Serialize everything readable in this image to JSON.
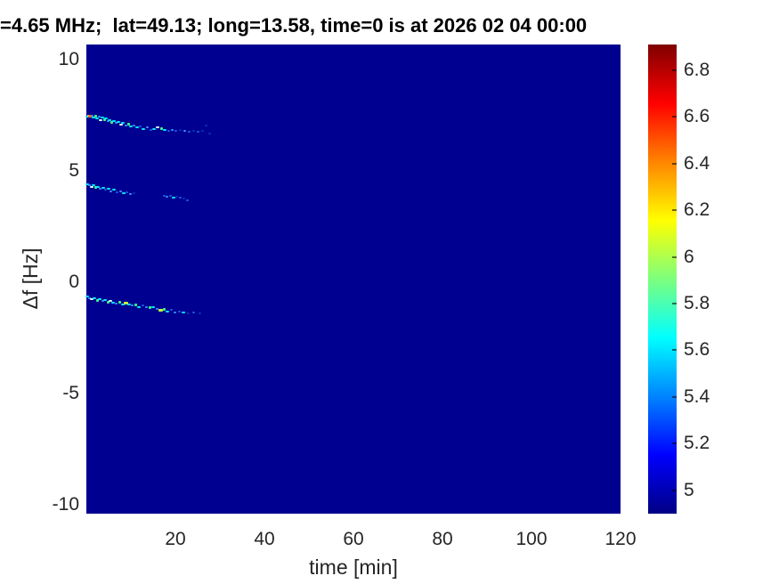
{
  "title": "=4.65 MHz;  lat=49.13; long=13.58, time=0 is at 2026 02 04 00:00",
  "chart_data": {
    "type": "heatmap",
    "title": "=4.65 MHz;  lat=49.13; long=13.58, time=0 is at 2026 02 04 00:00",
    "xlabel": "time [min]",
    "ylabel": "Δf [Hz]",
    "xlim": [
      0,
      120
    ],
    "ylim": [
      -10.4,
      10.68
    ],
    "xticks": [
      20,
      40,
      60,
      80,
      100,
      120
    ],
    "yticks": [
      10,
      5,
      0,
      -5,
      -10
    ],
    "grid": false,
    "background_color": "#000090",
    "background_value": 5.0,
    "colorbar": {
      "range": [
        4.9,
        6.91
      ],
      "ticks": [
        [
          6.8,
          "6.8"
        ],
        [
          6.6,
          "6.6"
        ],
        [
          6.4,
          "6.4"
        ],
        [
          6.2,
          "6.2"
        ],
        [
          6,
          "6"
        ],
        [
          5.8,
          "5.8"
        ],
        [
          5.6,
          "5.6"
        ],
        [
          5.4,
          "5.4"
        ],
        [
          5.2,
          "5.2"
        ],
        [
          5,
          "5"
        ]
      ],
      "colormap": "jet",
      "gradient_top_to_bottom": [
        {
          "pos": 0,
          "color": "#7f0000"
        },
        {
          "pos": 12.5,
          "color": "#ff0000"
        },
        {
          "pos": 25,
          "color": "#ff8400"
        },
        {
          "pos": 37.5,
          "color": "#ffff00"
        },
        {
          "pos": 50,
          "color": "#7dff7d"
        },
        {
          "pos": 62.5,
          "color": "#00ffff"
        },
        {
          "pos": 75,
          "color": "#0084ff"
        },
        {
          "pos": 87.5,
          "color": "#0000ff"
        },
        {
          "pos": 100,
          "color": "#000084"
        }
      ]
    },
    "palette": {
      "or": {
        "color": "#ff6a00",
        "w": 5,
        "h": 3
      },
      "wh": {
        "color": "#d9ffff",
        "w": 4,
        "h": 2
      },
      "cy": {
        "color": "#00e8ff",
        "w": 4,
        "h": 2
      },
      "lb": {
        "color": "#3d8bff",
        "w": 3,
        "h": 2
      },
      "gr": {
        "color": "#3cff88",
        "w": 3,
        "h": 3
      },
      "yg": {
        "color": "#c6ff3a",
        "w": 5,
        "h": 3
      },
      "bl": {
        "color": "#1f55e6",
        "w": 3,
        "h": 2
      },
      "dm": {
        "color": "#0a2fb4",
        "w": 3,
        "h": 2
      }
    },
    "series": [
      {
        "name": "trace-upper-7Hz",
        "points": [
          [
            0.2,
            7.45,
            "cy"
          ],
          [
            0.5,
            7.5,
            "wh"
          ],
          [
            0.9,
            7.45,
            "or"
          ],
          [
            1.2,
            7.5,
            "lb"
          ],
          [
            1.6,
            7.4,
            "cy"
          ],
          [
            2.0,
            7.45,
            "gr"
          ],
          [
            2.4,
            7.35,
            "cy"
          ],
          [
            2.8,
            7.45,
            "lb"
          ],
          [
            3.2,
            7.3,
            "wh"
          ],
          [
            3.6,
            7.4,
            "cy"
          ],
          [
            4.0,
            7.3,
            "gr"
          ],
          [
            4.4,
            7.35,
            "cy"
          ],
          [
            4.8,
            7.25,
            "lb"
          ],
          [
            5.2,
            7.3,
            "cy"
          ],
          [
            5.7,
            7.2,
            "gr"
          ],
          [
            6.2,
            7.25,
            "cy"
          ],
          [
            6.7,
            7.15,
            "lb"
          ],
          [
            7.2,
            7.2,
            "cy"
          ],
          [
            7.7,
            7.1,
            "wh"
          ],
          [
            8.2,
            7.15,
            "cy"
          ],
          [
            8.8,
            7.05,
            "lb"
          ],
          [
            9.4,
            7.1,
            "gr"
          ],
          [
            10.0,
            7.0,
            "cy"
          ],
          [
            10.7,
            7.05,
            "lb"
          ],
          [
            11.4,
            6.95,
            "cy"
          ],
          [
            12.1,
            7.0,
            "bl"
          ],
          [
            12.8,
            6.9,
            "cy"
          ],
          [
            13.6,
            6.95,
            "lb"
          ],
          [
            14.4,
            6.85,
            "bl"
          ],
          [
            15.2,
            6.9,
            "cy"
          ],
          [
            16.0,
            6.95,
            "wh"
          ],
          [
            16.8,
            6.9,
            "gr"
          ],
          [
            17.6,
            6.85,
            "cy"
          ],
          [
            18.4,
            6.8,
            "bl"
          ],
          [
            19.2,
            6.85,
            "lb"
          ],
          [
            20.0,
            6.8,
            "bl"
          ],
          [
            21.0,
            6.85,
            "dm"
          ],
          [
            22.0,
            6.8,
            "lb"
          ],
          [
            23.0,
            6.75,
            "bl"
          ],
          [
            24.0,
            6.8,
            "dm"
          ],
          [
            25.0,
            6.75,
            "bl"
          ],
          [
            26.0,
            6.8,
            "dm"
          ],
          [
            26.8,
            7.05,
            "dm"
          ],
          [
            27.6,
            6.7,
            "dm"
          ]
        ]
      },
      {
        "name": "trace-middle-4Hz",
        "points": [
          [
            0.2,
            4.4,
            "cy"
          ],
          [
            0.6,
            4.35,
            "lb"
          ],
          [
            1.1,
            4.3,
            "wh"
          ],
          [
            1.6,
            4.35,
            "cy"
          ],
          [
            2.1,
            4.25,
            "gr"
          ],
          [
            2.6,
            4.3,
            "cy"
          ],
          [
            3.1,
            4.2,
            "lb"
          ],
          [
            3.7,
            4.25,
            "cy"
          ],
          [
            4.3,
            4.15,
            "bl"
          ],
          [
            4.9,
            4.2,
            "cy"
          ],
          [
            5.5,
            4.1,
            "lb"
          ],
          [
            6.2,
            4.15,
            "cy"
          ],
          [
            6.9,
            4.05,
            "bl"
          ],
          [
            7.6,
            4.1,
            "lb"
          ],
          [
            8.3,
            4.0,
            "cy"
          ],
          [
            9.0,
            4.05,
            "bl"
          ],
          [
            9.8,
            3.95,
            "lb"
          ],
          [
            10.6,
            4.0,
            "dm"
          ],
          [
            17.4,
            3.9,
            "bl"
          ],
          [
            18.1,
            3.85,
            "lb"
          ],
          [
            18.8,
            3.9,
            "bl"
          ],
          [
            19.5,
            3.8,
            "cy"
          ],
          [
            20.2,
            3.85,
            "dm"
          ],
          [
            21.0,
            3.8,
            "bl"
          ],
          [
            21.8,
            3.75,
            "dm"
          ],
          [
            22.6,
            3.7,
            "bl"
          ]
        ]
      },
      {
        "name": "trace-lower-minus1Hz",
        "points": [
          [
            0.2,
            -0.65,
            "cy"
          ],
          [
            0.7,
            -0.7,
            "lb"
          ],
          [
            1.2,
            -0.75,
            "wh"
          ],
          [
            1.8,
            -0.7,
            "cy"
          ],
          [
            2.4,
            -0.8,
            "gr"
          ],
          [
            3.0,
            -0.75,
            "cy"
          ],
          [
            3.6,
            -0.85,
            "lb"
          ],
          [
            4.2,
            -0.8,
            "cy"
          ],
          [
            4.8,
            -0.9,
            "gr"
          ],
          [
            5.4,
            -0.85,
            "wh"
          ],
          [
            6.0,
            -0.9,
            "cy"
          ],
          [
            6.7,
            -0.95,
            "lb"
          ],
          [
            7.4,
            -0.9,
            "gr"
          ],
          [
            8.1,
            -1.0,
            "cy"
          ],
          [
            8.8,
            -0.95,
            "yg"
          ],
          [
            9.5,
            -1.0,
            "cy"
          ],
          [
            10.2,
            -1.05,
            "lb"
          ],
          [
            11.0,
            -1.0,
            "gr"
          ],
          [
            11.8,
            -1.1,
            "cy"
          ],
          [
            12.6,
            -1.05,
            "bl"
          ],
          [
            13.4,
            -1.1,
            "lb"
          ],
          [
            14.2,
            -1.15,
            "gr"
          ],
          [
            15.0,
            -1.1,
            "cy"
          ],
          [
            15.8,
            -1.2,
            "lb"
          ],
          [
            16.6,
            -1.25,
            "yg"
          ],
          [
            17.4,
            -1.2,
            "gr"
          ],
          [
            18.2,
            -1.3,
            "cy"
          ],
          [
            19.0,
            -1.25,
            "bl"
          ],
          [
            19.9,
            -1.35,
            "lb"
          ],
          [
            20.8,
            -1.3,
            "bl"
          ],
          [
            21.8,
            -1.35,
            "cy"
          ],
          [
            22.8,
            -1.4,
            "dm"
          ],
          [
            24.0,
            -1.35,
            "bl"
          ],
          [
            25.4,
            -1.4,
            "dm"
          ]
        ]
      }
    ]
  }
}
